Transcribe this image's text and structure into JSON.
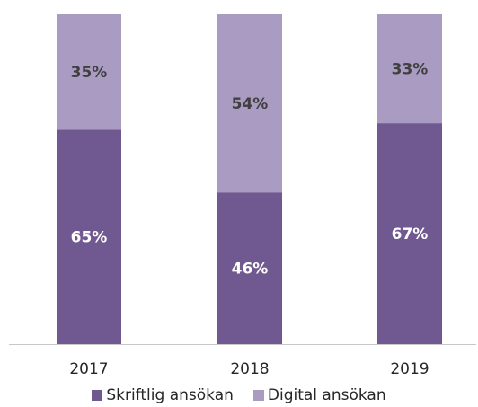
{
  "chart_data": {
    "type": "bar",
    "stacked": true,
    "percent": true,
    "categories": [
      "2017",
      "2018",
      "2019"
    ],
    "series": [
      {
        "name": "Skriftlig ansökan",
        "color": "#705890",
        "label_color": "#ffffff",
        "values": [
          65,
          46,
          67
        ],
        "labels": [
          "65%",
          "46%",
          "67%"
        ]
      },
      {
        "name": "Digital ansökan",
        "color": "#a99bc1",
        "label_color": "#404040",
        "values": [
          35,
          54,
          33
        ],
        "labels": [
          "35%",
          "54%",
          "33%"
        ]
      }
    ],
    "ylim": [
      0,
      100
    ],
    "grid": false,
    "legend_position": "bottom"
  }
}
